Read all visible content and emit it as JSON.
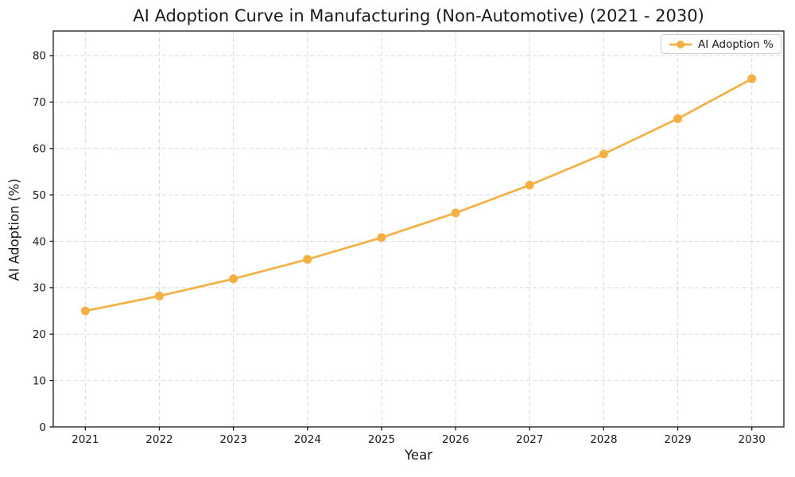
{
  "title": "AI Adoption Curve in Manufacturing (Non-Automotive) (2021 - 2030)",
  "legend": {
    "label": "AI Adoption %",
    "position": "upper right"
  },
  "colors": {
    "line": "#F5B041",
    "grid": "#D9D9D9",
    "axis": "#1A1A1A",
    "text": "#1A1A1A",
    "legend_border": "#CCCCCC",
    "legend_bg": "#FFFFFF"
  },
  "chart_data": {
    "type": "line",
    "title": "AI Adoption Curve in Manufacturing (Non-Automotive) (2021 - 2030)",
    "xlabel": "Year",
    "ylabel": "AI Adoption (%)",
    "x": [
      2021,
      2022,
      2023,
      2024,
      2025,
      2026,
      2027,
      2028,
      2029,
      2030
    ],
    "series": [
      {
        "name": "AI Adoption %",
        "values": [
          25.0,
          28.2,
          31.9,
          36.1,
          40.8,
          46.1,
          52.1,
          58.8,
          66.4,
          75.0
        ]
      }
    ],
    "yticks": [
      0,
      10,
      20,
      30,
      40,
      50,
      60,
      70,
      80
    ],
    "ylim": [
      0,
      85
    ],
    "grid": true,
    "grid_style": "dashed",
    "marker": "circle",
    "legend_position": "upper right"
  }
}
